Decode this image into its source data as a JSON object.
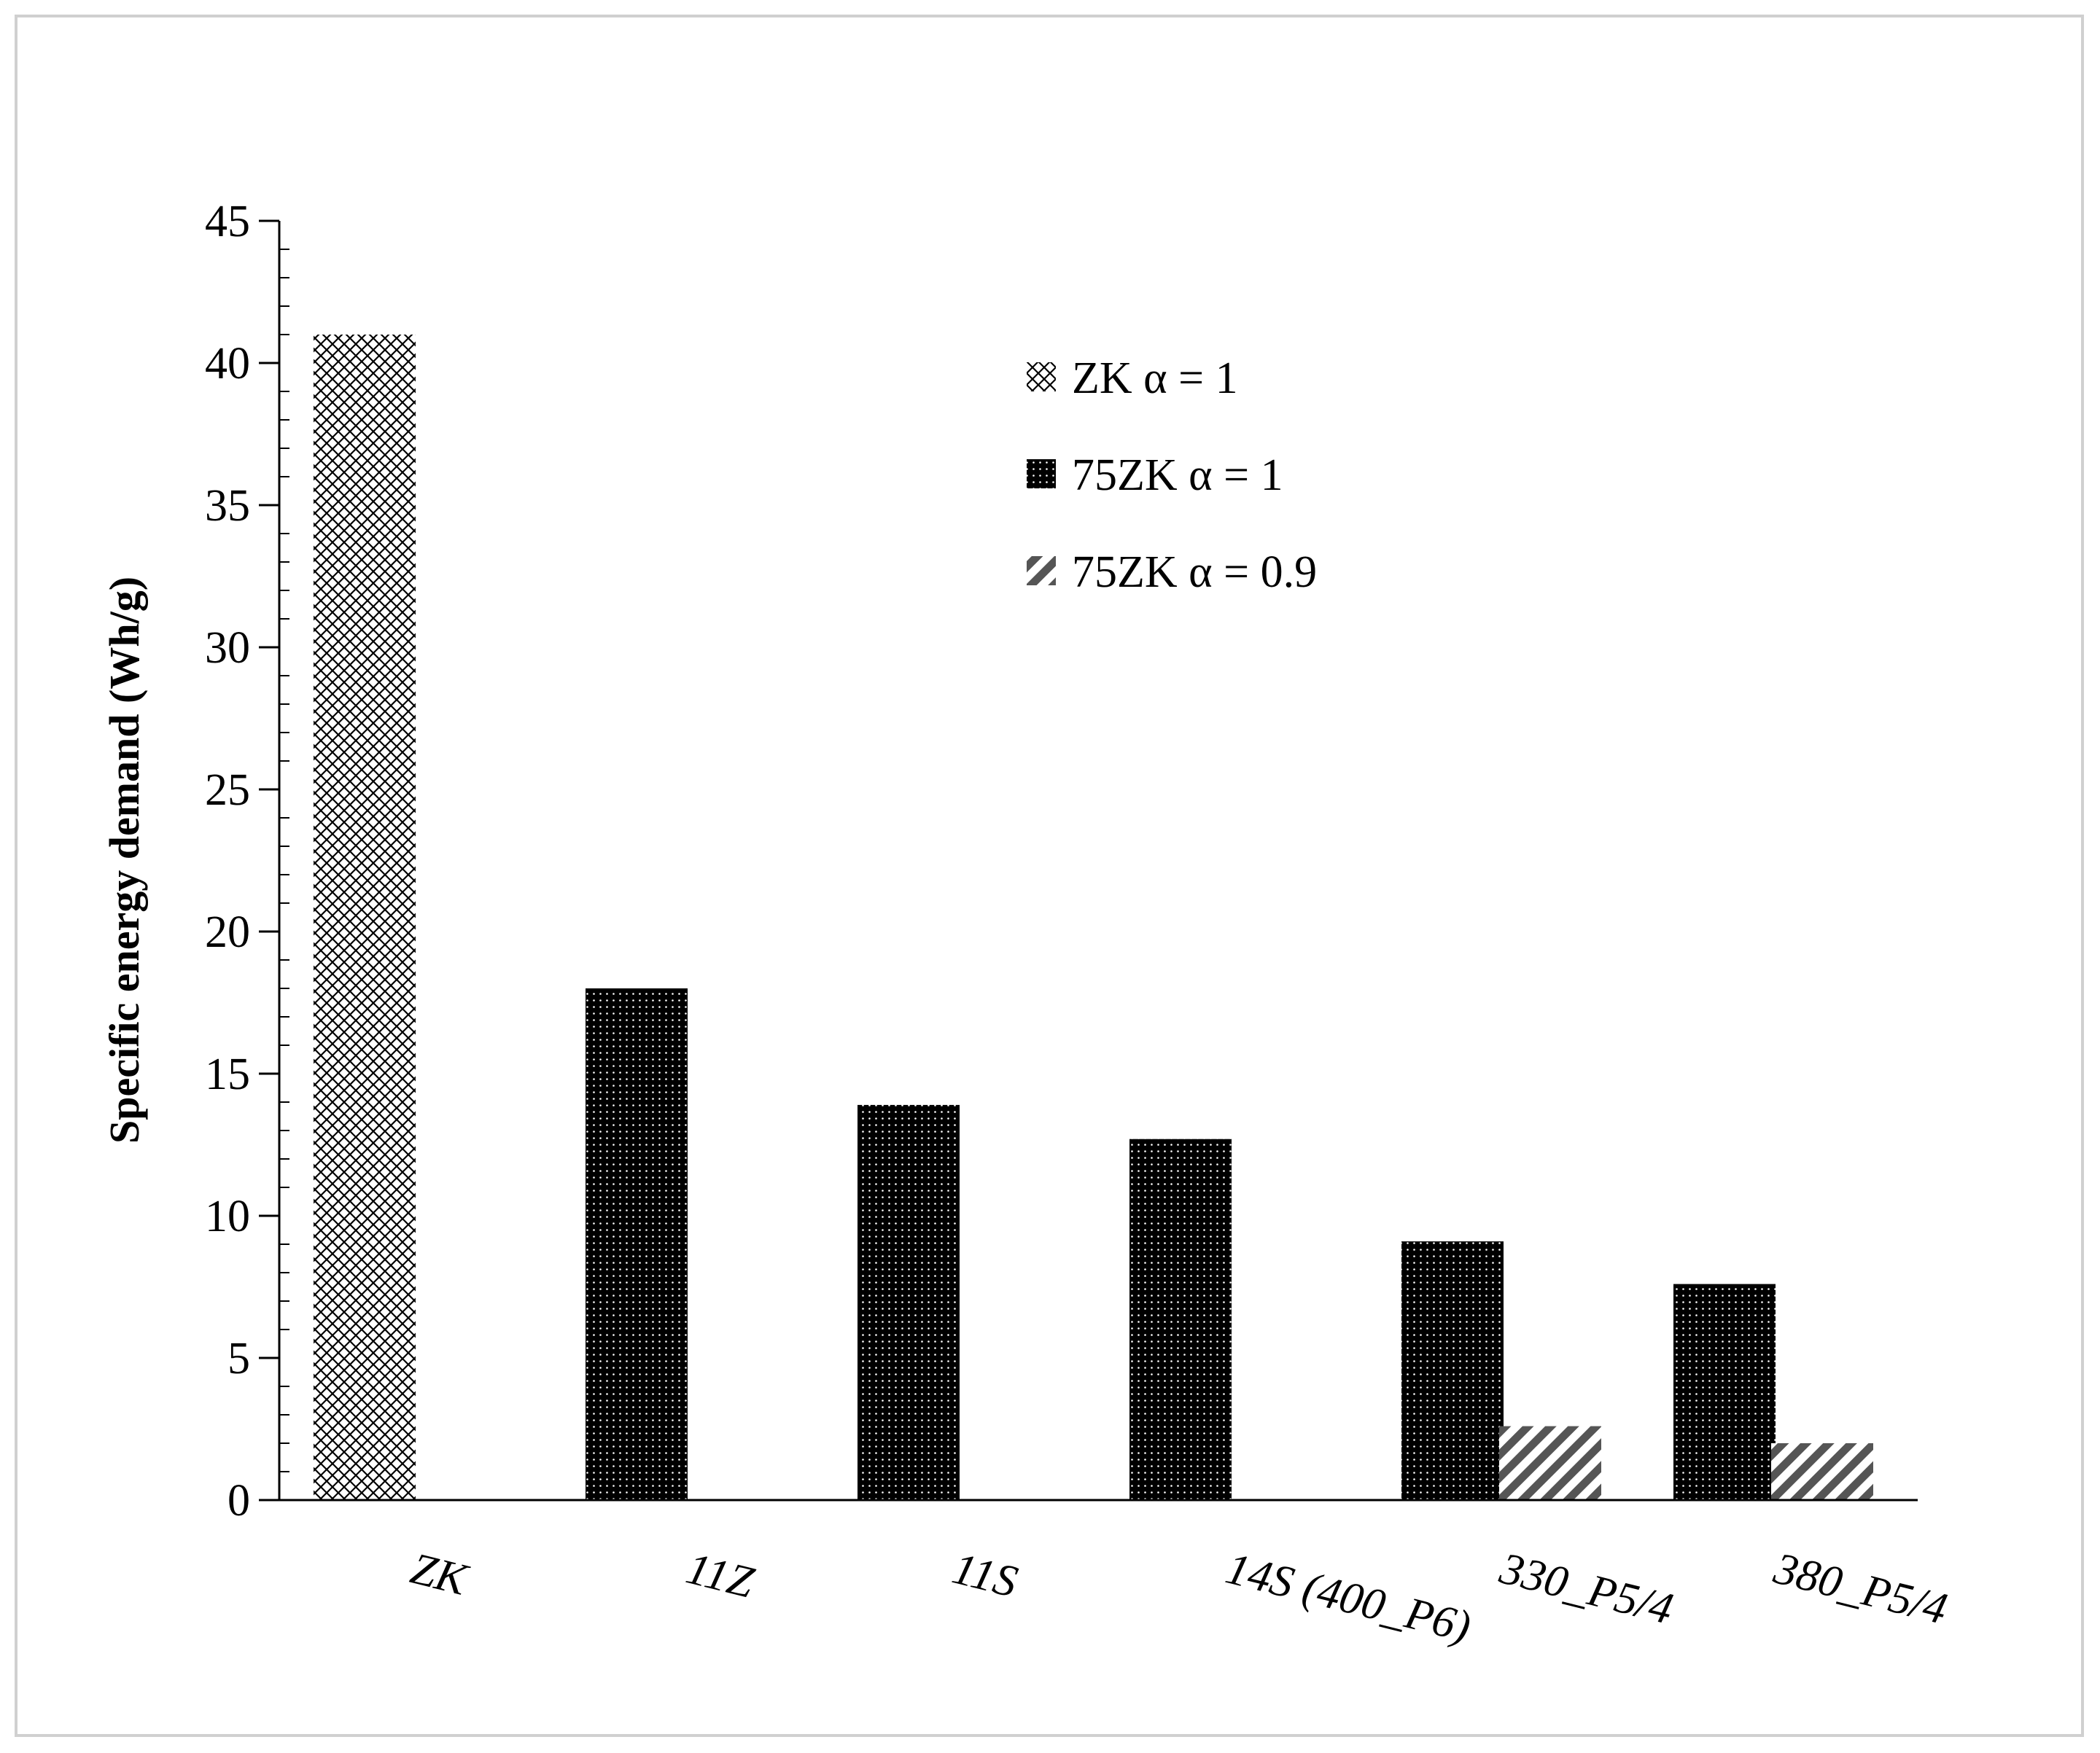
{
  "chart_data": {
    "type": "bar",
    "categories": [
      "ZK",
      "11Z",
      "11S",
      "14S (400_P6)",
      "330_P5/4",
      "380_P5/4"
    ],
    "series": [
      {
        "name": "ZK α = 1",
        "values": [
          41,
          null,
          null,
          null,
          null,
          null
        ],
        "pattern": "crosshatch",
        "color": "#000000"
      },
      {
        "name": "75ZK α = 1",
        "values": [
          null,
          18,
          13.9,
          12.7,
          9.1,
          7.6
        ],
        "pattern": "dotted-dark",
        "color": "#000000"
      },
      {
        "name": "75ZK α = 0.9",
        "values": [
          null,
          null,
          null,
          null,
          2.6,
          2.0
        ],
        "pattern": "diagonal-stripes",
        "color": "#555555"
      }
    ],
    "ylabel": "Specific energy demand (Wh/g)",
    "xlabel": "",
    "ylim": [
      0,
      45
    ],
    "yticks": [
      0,
      5,
      10,
      15,
      20,
      25,
      30,
      35,
      40,
      45
    ],
    "grid": false,
    "legend_position": "top-right"
  }
}
